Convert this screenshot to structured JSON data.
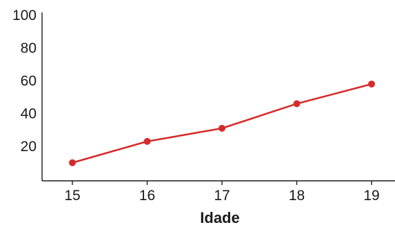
{
  "chart_data": {
    "type": "line",
    "title": "",
    "xlabel": "Idade",
    "ylabel": "",
    "x": [
      15,
      16,
      17,
      18,
      19
    ],
    "series": [
      {
        "values": [
          10,
          23,
          31,
          46,
          58
        ]
      }
    ],
    "xticks": [
      "15",
      "16",
      "17",
      "18",
      "19"
    ],
    "yticks": [
      "20",
      "40",
      "60",
      "80",
      "100"
    ],
    "ylim": [
      0,
      100
    ],
    "grid": false,
    "legend": "none",
    "line_color": "#d62b2b",
    "axis_color": "#1a1a1a"
  }
}
